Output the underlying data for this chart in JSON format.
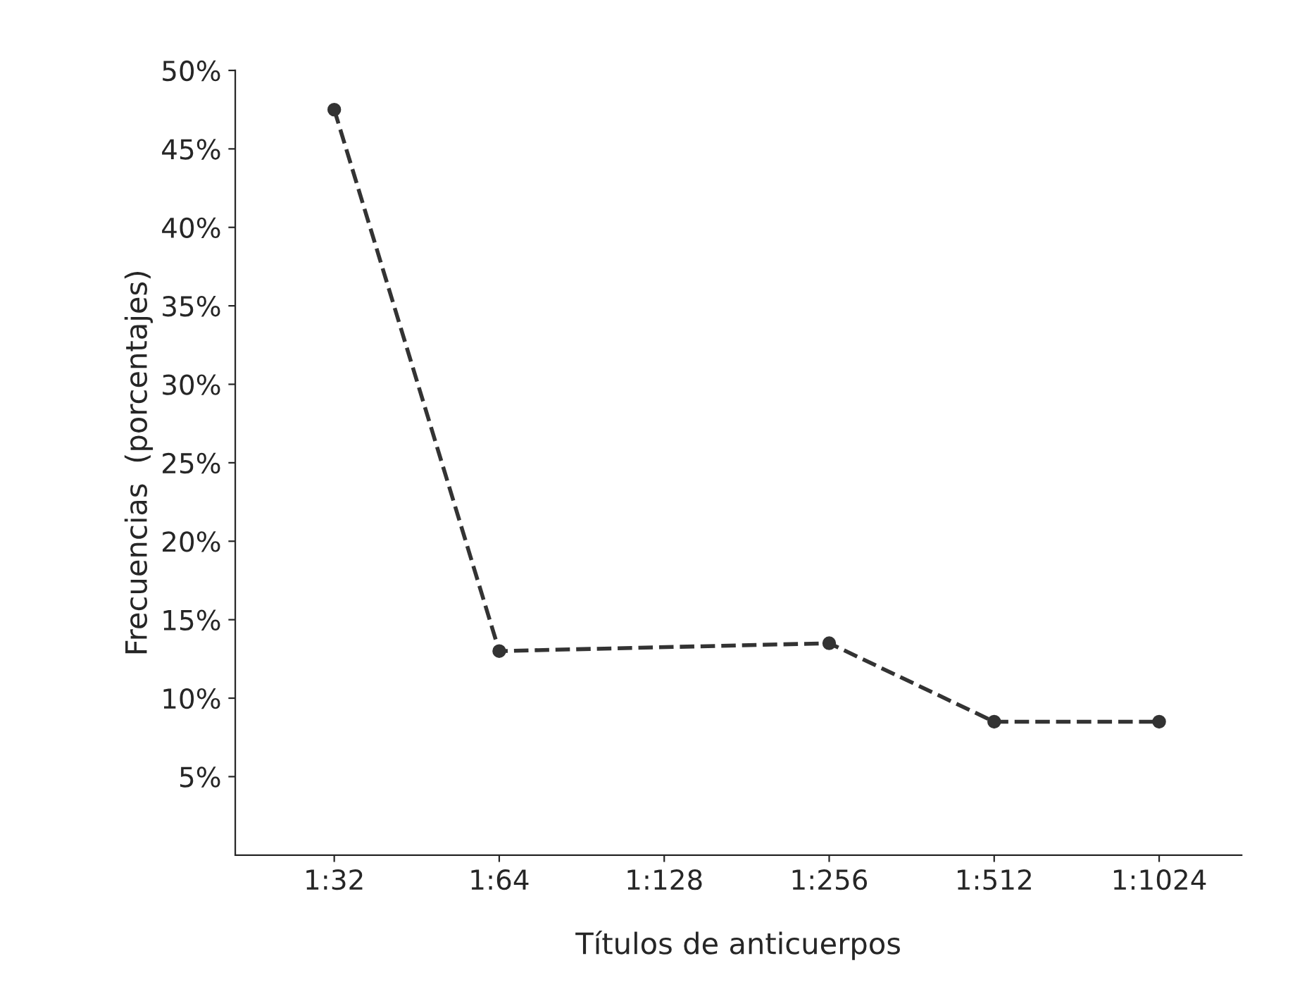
{
  "chart_data": {
    "type": "line",
    "xlabel": "Títulos de anticuerpos",
    "ylabel": "Frecuencias  (porcentajes)",
    "categories": [
      "1:32",
      "1:64",
      "1:128",
      "1:256",
      "1:512",
      "1:1024"
    ],
    "series": [
      {
        "color": "#333333",
        "values": [
          47.5,
          13,
          null,
          13.5,
          8.5,
          8.5
        ]
      }
    ],
    "ylim": [
      0,
      50
    ],
    "yticks": [
      {
        "value": 5,
        "label": "5%"
      },
      {
        "value": 10,
        "label": "10%"
      },
      {
        "value": 15,
        "label": "15%"
      },
      {
        "value": 20,
        "label": "20%"
      },
      {
        "value": 25,
        "label": "25%"
      },
      {
        "value": 30,
        "label": "30%"
      },
      {
        "value": 35,
        "label": "35%"
      },
      {
        "value": 40,
        "label": "40%"
      },
      {
        "value": 45,
        "label": "45%"
      },
      {
        "value": 50,
        "label": "50%"
      }
    ],
    "grid": false,
    "marker": "circle",
    "line_style": "dashed"
  }
}
